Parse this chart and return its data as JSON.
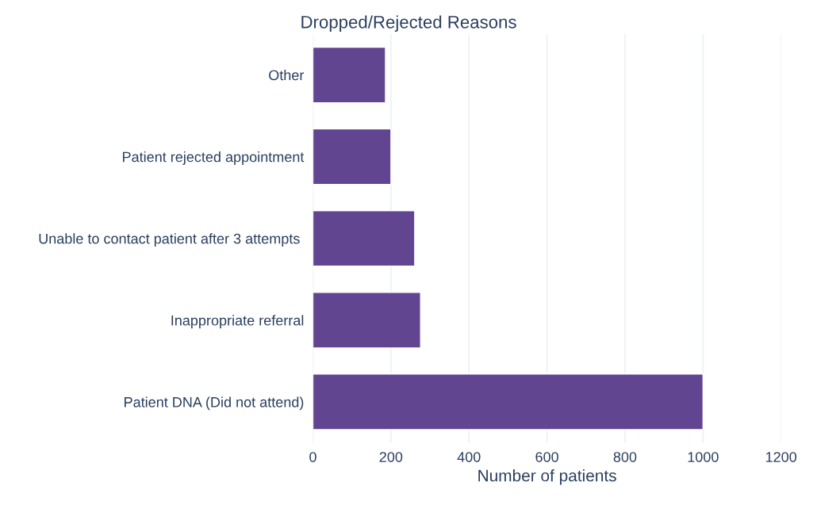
{
  "chart_data": {
    "type": "bar",
    "title": "Dropped/Rejected Reasons",
    "xlabel": "Number of patients",
    "orientation": "horizontal",
    "categories": [
      "Other",
      "Patient rejected appointment",
      "Unable to contact patient after 3 attempts ",
      "Inappropriate referral",
      "Patient DNA (Did not attend)"
    ],
    "values": [
      186,
      200,
      261,
      276,
      1000
    ],
    "color": "#614590",
    "xlim": [
      0,
      1200
    ],
    "xticks": [
      0,
      200,
      400,
      600,
      800,
      1000,
      1200
    ],
    "grid": "x"
  }
}
